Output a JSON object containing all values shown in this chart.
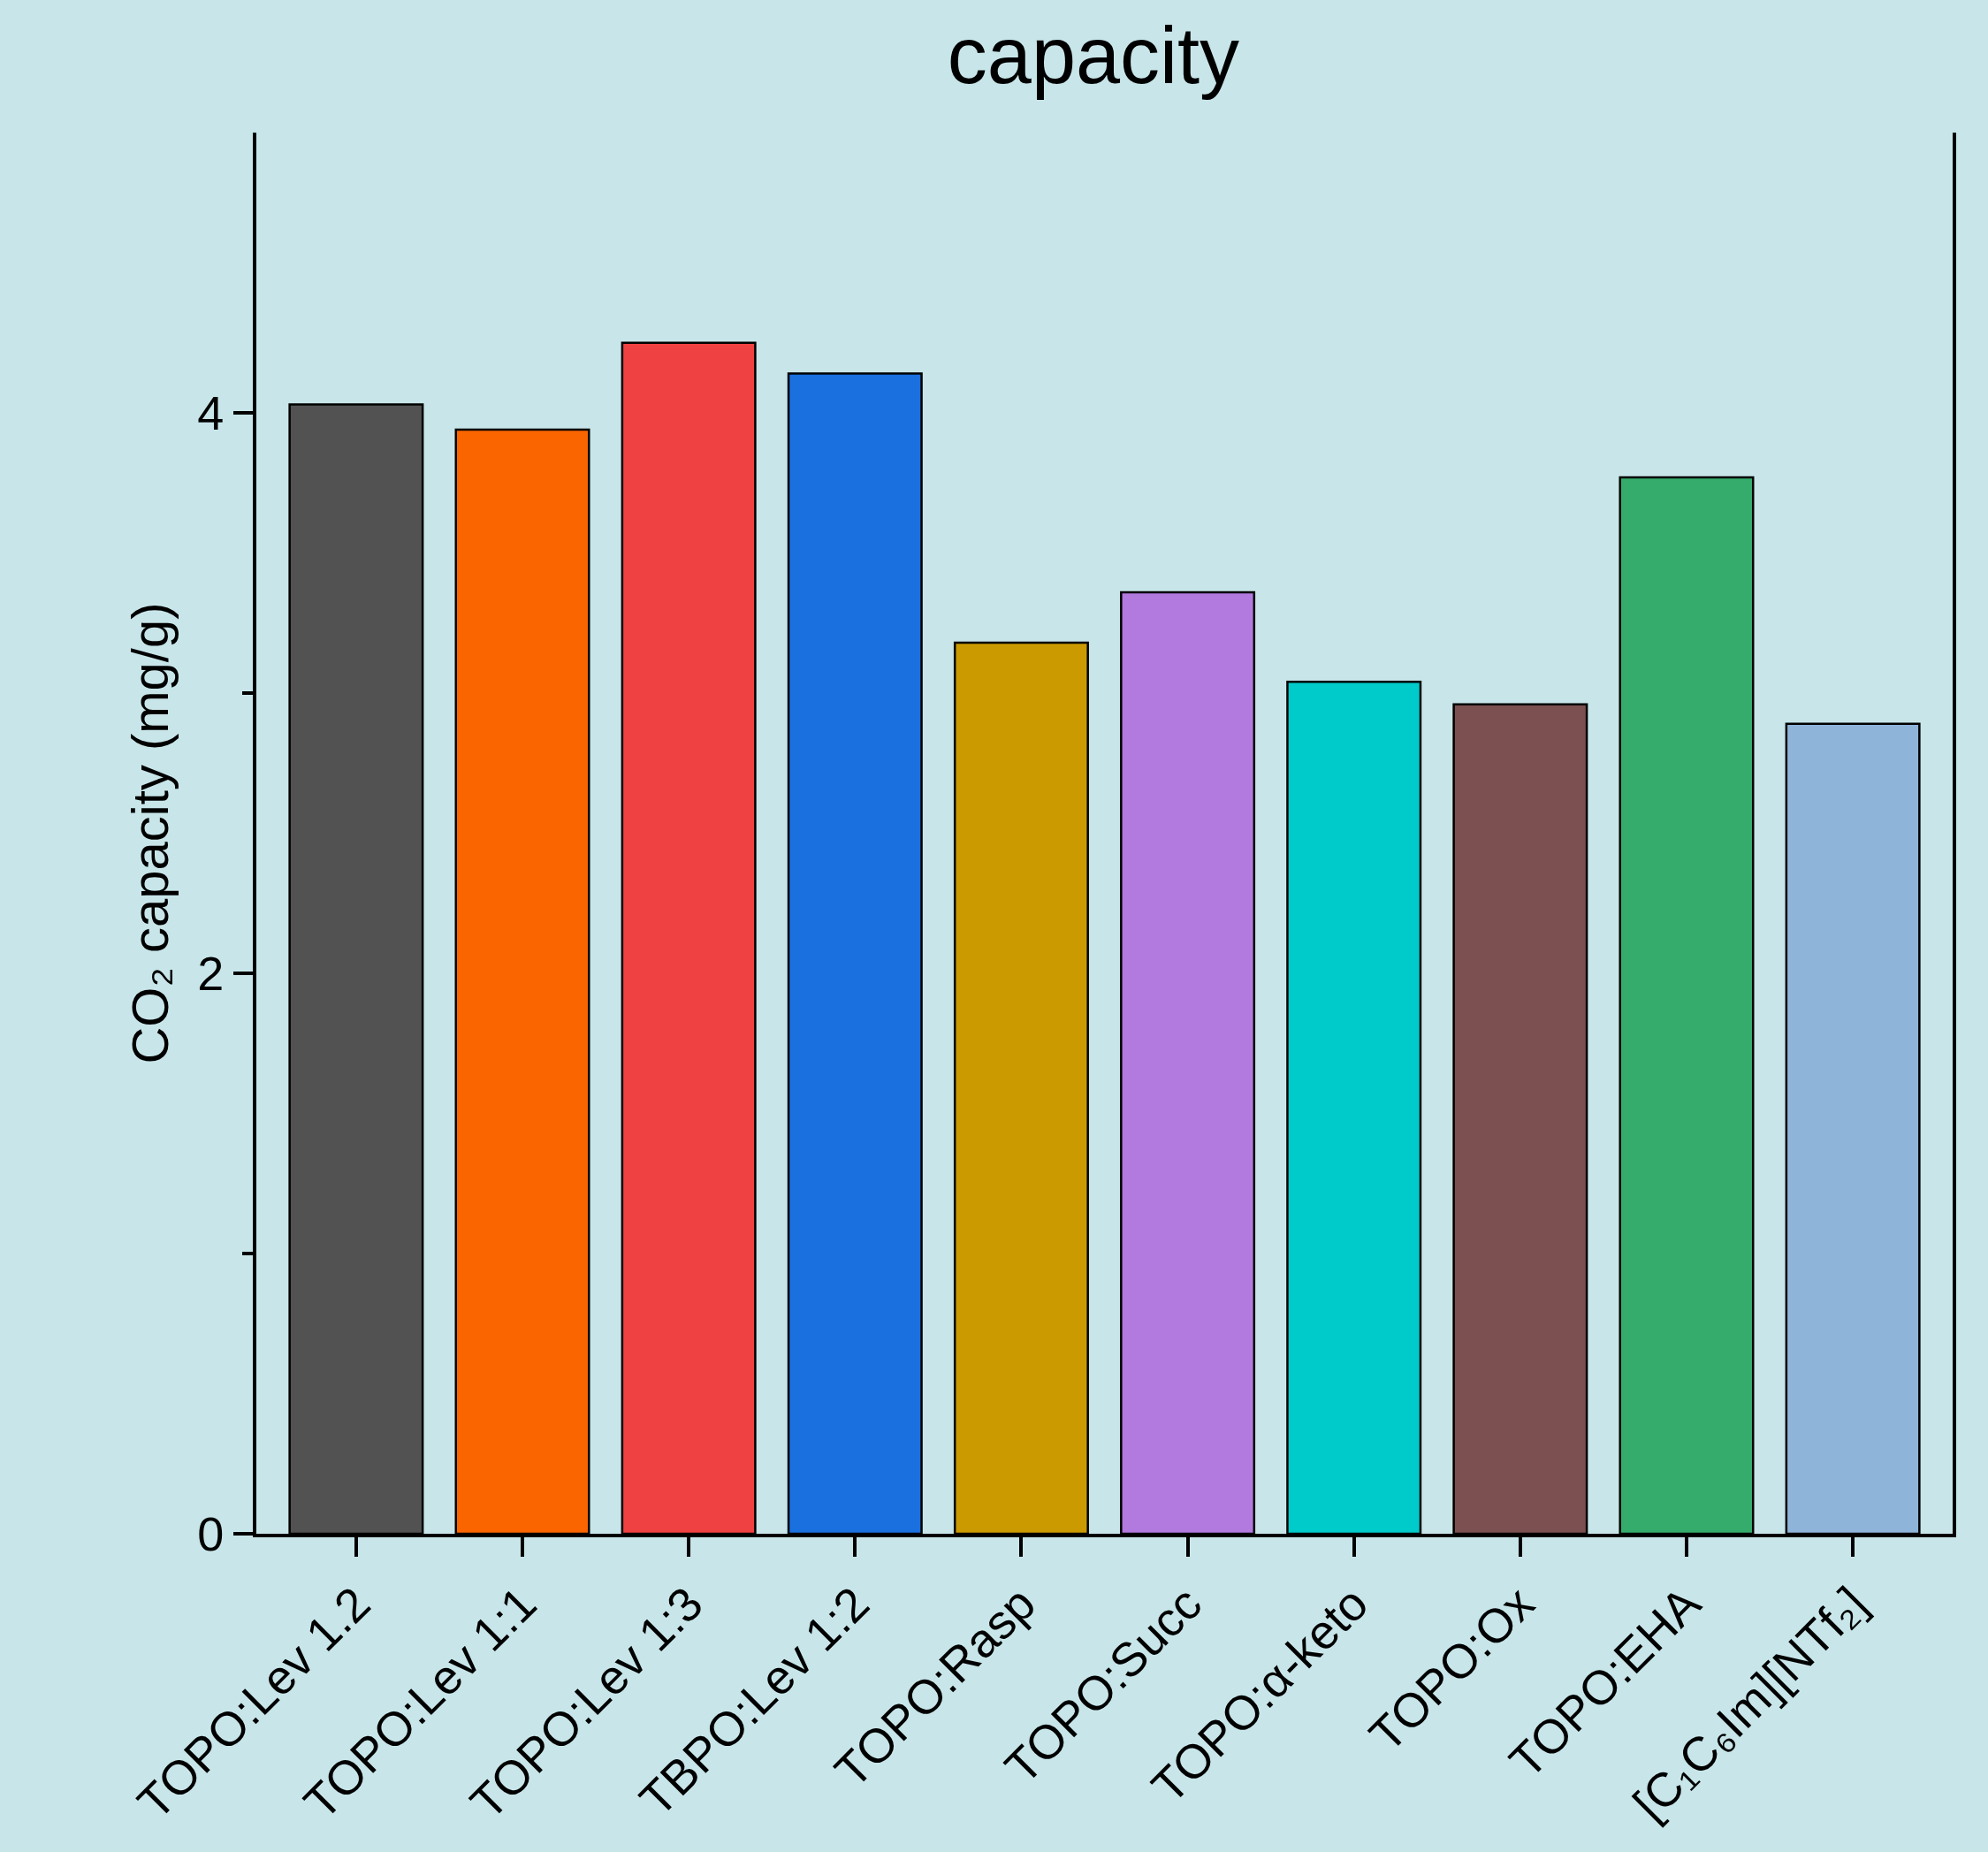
{
  "chart_data": {
    "type": "bar",
    "title": "capacity",
    "ylabel": "CO₂ capacity (mg/g)",
    "categories": [
      "TOPO:Lev 1.2",
      "TOPO:Lev 1:1",
      "TOPO:Lev 1:3",
      "TBPO:Lev 1:2",
      "TOPO:Rasp",
      "TOPO:Succ",
      "TOPO:α-keto",
      "TOPO:Ox",
      "TOPO:EHA",
      "[C₁C₆Im][NTf₂]"
    ],
    "values": [
      4.03,
      3.94,
      4.25,
      4.14,
      3.18,
      3.36,
      3.04,
      2.96,
      3.77,
      2.89
    ],
    "colors": [
      "#525252",
      "#fb6500",
      "#f04142",
      "#1a70df",
      "#ca9a00",
      "#b27ade",
      "#00cbcb",
      "#7c5050",
      "#35ac6b",
      "#8fb4da"
    ],
    "ylim": [
      0,
      5
    ],
    "yticks": [
      0,
      {
        "value": 1,
        "label": null
      },
      2,
      {
        "value": 3,
        "label": null
      },
      4
    ],
    "grid": false
  }
}
